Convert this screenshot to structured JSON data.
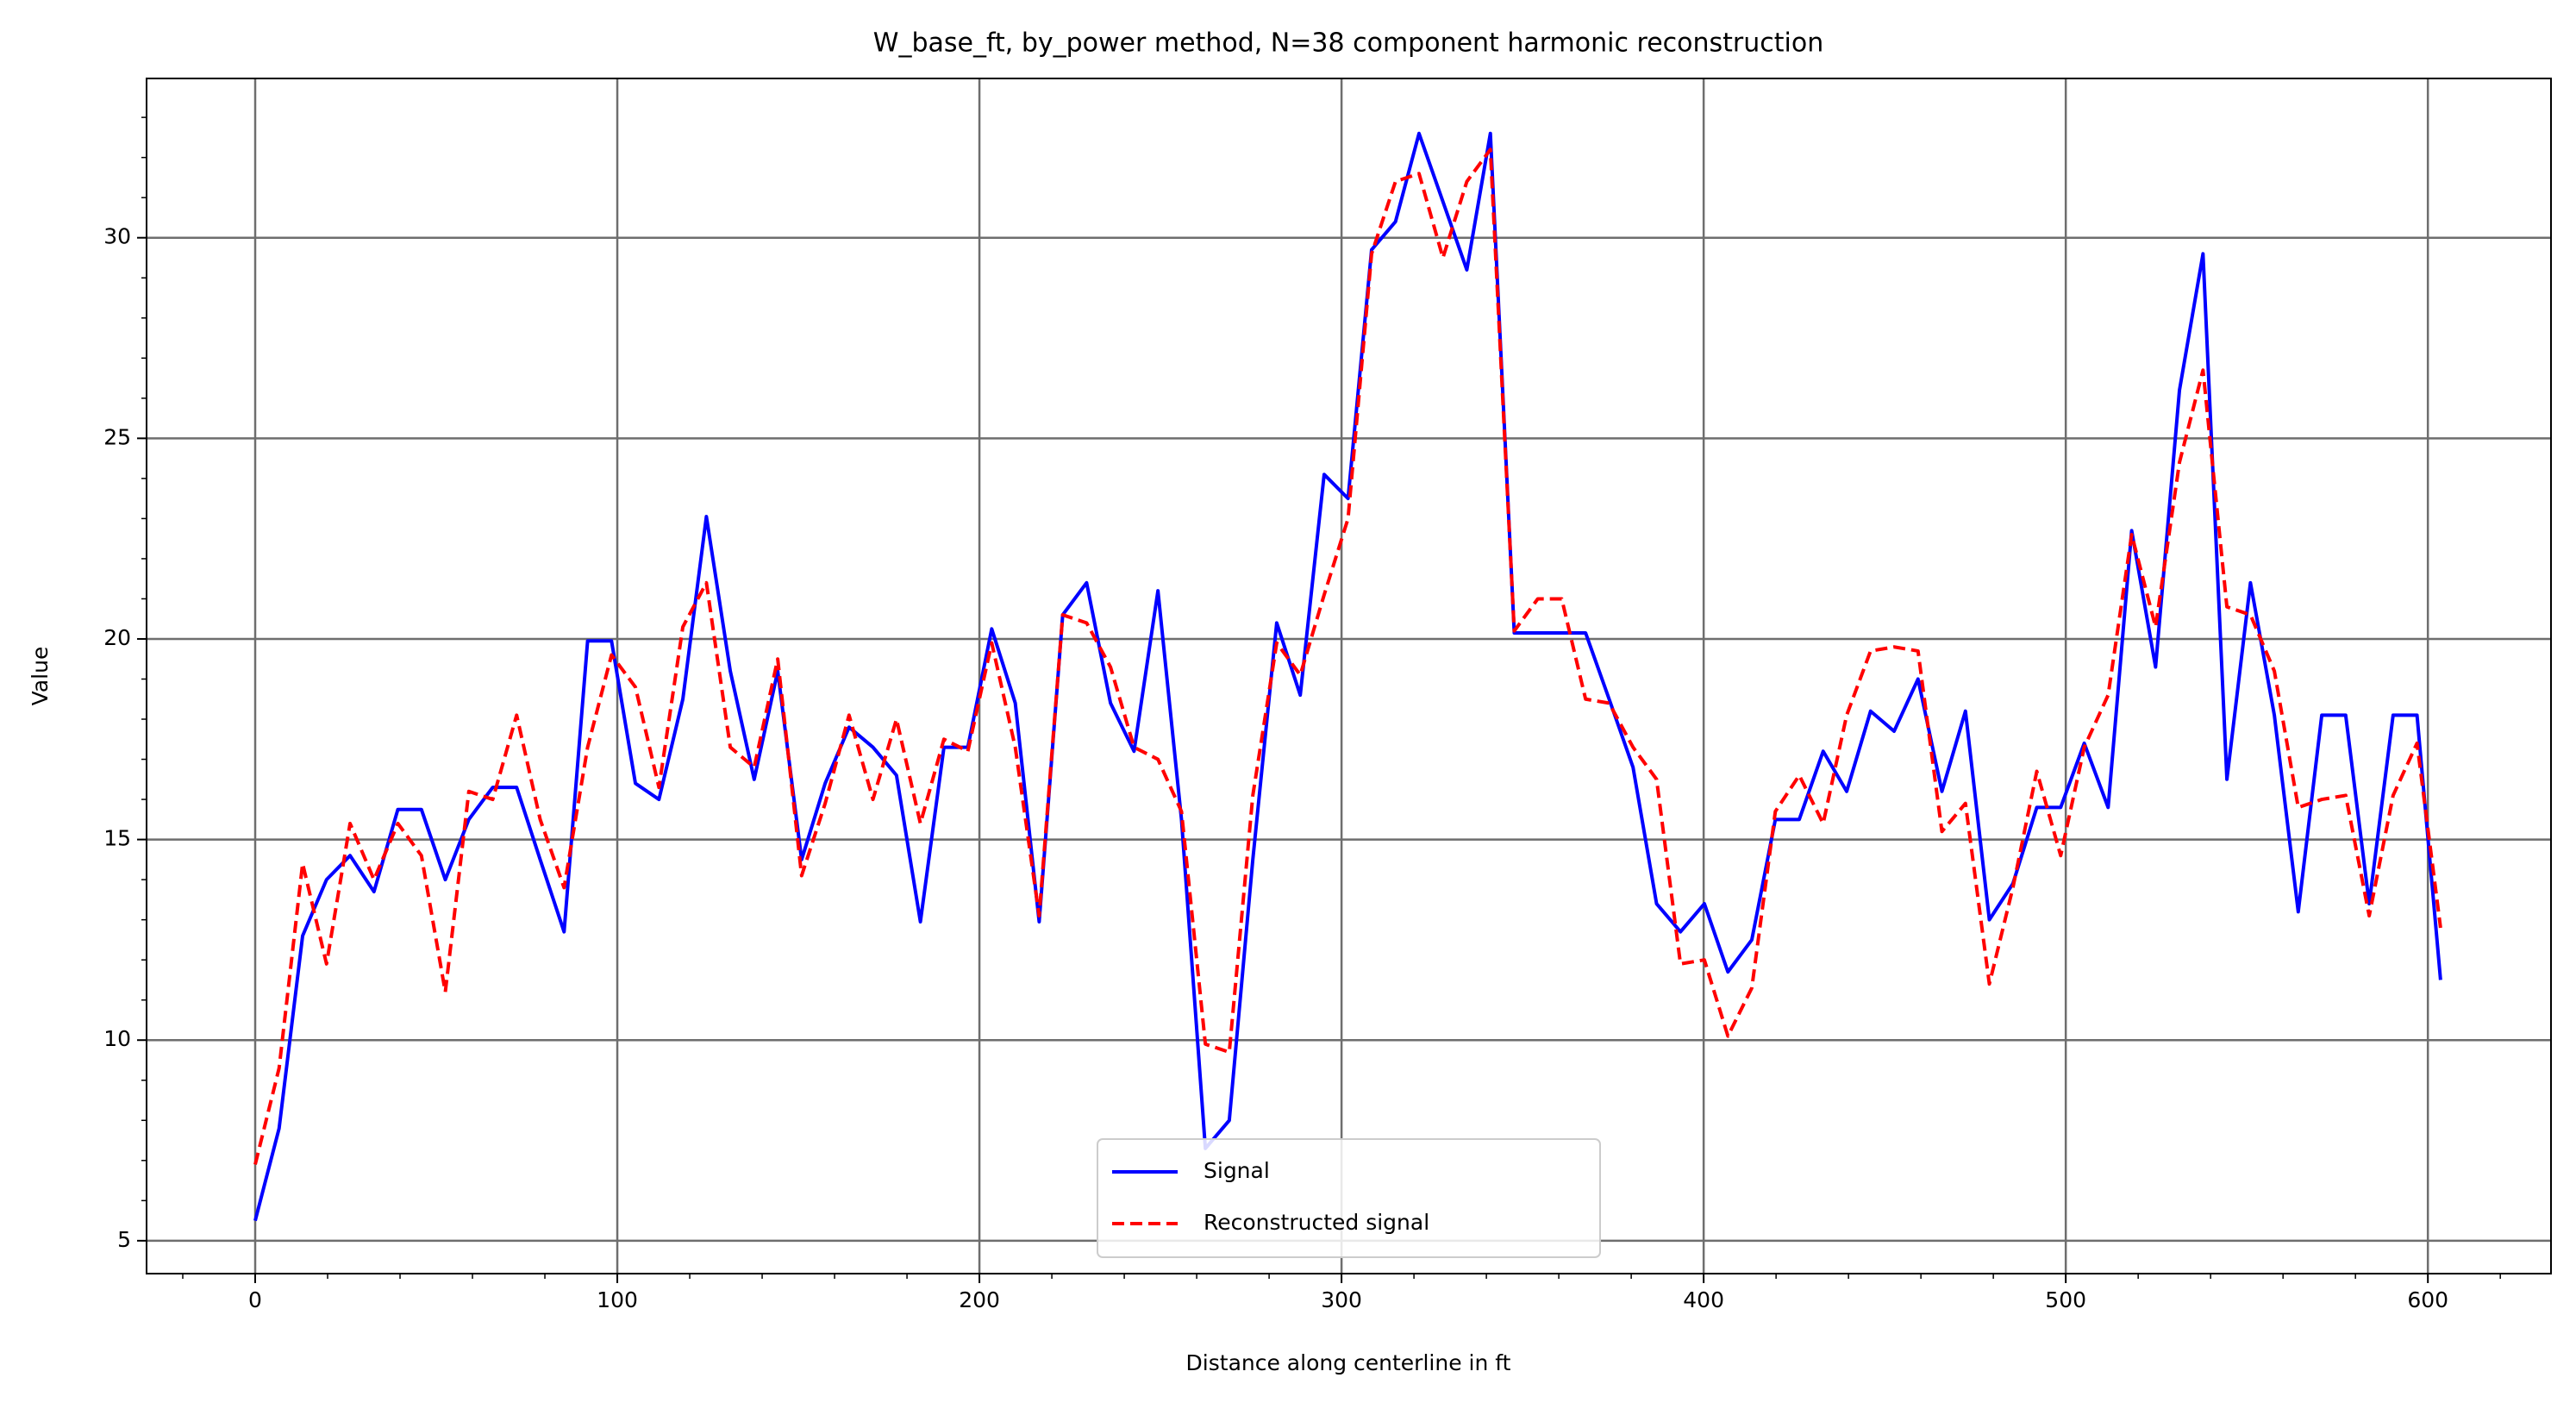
{
  "chart_data": {
    "type": "line",
    "title": "W_base_ft, by_power method, N=38 component harmonic reconstruction",
    "x_label": "Distance along centerline in ft",
    "y_label": "Value",
    "x": [
      0,
      6.6,
      13.1,
      19.7,
      26.2,
      32.8,
      39.4,
      45.9,
      52.5,
      59,
      65.6,
      72.2,
      78.7,
      85.3,
      91.8,
      98.4,
      105,
      111.5,
      118.1,
      124.6,
      131.2,
      137.8,
      144.3,
      150.9,
      157.4,
      164,
      170.6,
      177.1,
      183.7,
      190.2,
      196.8,
      203.4,
      209.9,
      216.5,
      223,
      229.6,
      236.2,
      242.7,
      249.3,
      255.8,
      262.4,
      269,
      275.5,
      282.1,
      288.6,
      295.2,
      301.8,
      308.3,
      314.9,
      321.4,
      328,
      334.6,
      341.1,
      347.7,
      354.2,
      360.8,
      367.4,
      373.9,
      380.5,
      387,
      393.6,
      400.2,
      406.7,
      413.3,
      419.8,
      426.4,
      433,
      439.5,
      446.1,
      452.6,
      459.2,
      465.8,
      472.3,
      478.9,
      485.4,
      492,
      498.6,
      505.1,
      511.7,
      518.2,
      524.8,
      531.4,
      537.9,
      544.5,
      551,
      557.6,
      564.2,
      570.7,
      577.3,
      583.8,
      590.4,
      597,
      603.5
    ],
    "series": [
      {
        "name": "Signal",
        "color": "#0000ff",
        "dash": false,
        "values": [
          5.5,
          7.8,
          12.6,
          14.0,
          14.6,
          13.7,
          15.75,
          15.75,
          14.0,
          15.5,
          16.3,
          16.3,
          14.5,
          12.7,
          19.95,
          19.95,
          16.4,
          16.0,
          18.5,
          23.05,
          19.2,
          16.5,
          19.2,
          14.5,
          16.4,
          17.8,
          17.3,
          16.6,
          12.95,
          17.3,
          17.3,
          20.25,
          18.4,
          12.95,
          20.6,
          21.4,
          18.4,
          17.2,
          21.2,
          15.5,
          7.3,
          8.0,
          14.5,
          20.4,
          18.6,
          24.1,
          23.5,
          29.7,
          30.4,
          32.6,
          30.9,
          29.2,
          32.6,
          20.15,
          20.15,
          20.15,
          20.15,
          18.5,
          16.8,
          13.4,
          12.7,
          13.4,
          11.7,
          12.5,
          15.5,
          15.5,
          17.2,
          16.2,
          18.2,
          17.7,
          19.0,
          16.2,
          18.2,
          13.0,
          13.9,
          15.8,
          15.8,
          17.4,
          15.8,
          22.7,
          19.3,
          26.2,
          29.6,
          16.5,
          21.4,
          18.1,
          13.2,
          18.1,
          18.1,
          13.4,
          18.1,
          18.1,
          11.5
        ]
      },
      {
        "name": "Reconstructed signal",
        "color": "#ff0000",
        "dash": true,
        "values": [
          6.9,
          9.3,
          14.4,
          11.9,
          15.4,
          14.0,
          15.4,
          14.6,
          11.2,
          16.2,
          16.0,
          18.1,
          15.5,
          13.8,
          17.3,
          19.6,
          18.8,
          16.3,
          20.3,
          21.4,
          17.3,
          16.8,
          19.5,
          14.1,
          15.9,
          18.1,
          16.0,
          18.0,
          15.4,
          17.5,
          17.2,
          19.9,
          17.3,
          13.1,
          20.6,
          20.4,
          19.3,
          17.3,
          17.0,
          15.7,
          9.9,
          9.7,
          16.1,
          19.9,
          19.1,
          21.1,
          23.0,
          29.6,
          31.4,
          31.6,
          29.5,
          31.4,
          32.2,
          20.2,
          21.0,
          21.0,
          18.5,
          18.4,
          17.3,
          16.5,
          11.9,
          12.0,
          10.1,
          11.3,
          15.7,
          16.6,
          15.4,
          18.1,
          19.7,
          19.8,
          19.7,
          15.2,
          15.9,
          11.4,
          13.8,
          16.7,
          14.6,
          17.3,
          18.6,
          22.6,
          20.3,
          24.4,
          26.7,
          20.8,
          20.6,
          19.2,
          15.8,
          16.0,
          16.1,
          13.1,
          16.1,
          17.4,
          12.8
        ]
      }
    ],
    "xlim": [
      -30,
      634
    ],
    "ylim": [
      4.18,
      33.97
    ],
    "xticks": [
      0,
      100,
      200,
      300,
      400,
      500,
      600
    ],
    "yticks": [
      5,
      10,
      15,
      20,
      25,
      30
    ],
    "grid": true,
    "minor_ticks": true,
    "legend": "lower center"
  }
}
